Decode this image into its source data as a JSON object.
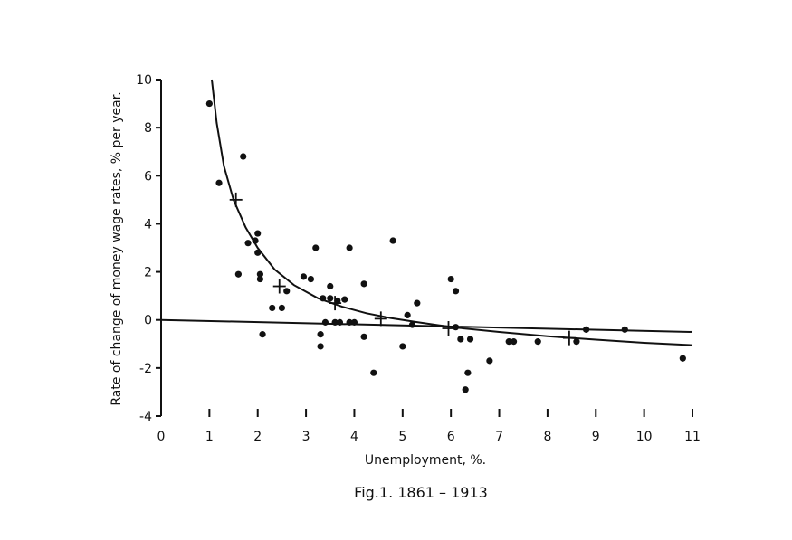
{
  "chart_data": {
    "type": "scatter",
    "title": "",
    "caption": "Fig.1. 1861 – 1913",
    "xlabel": "Unemployment,     %.",
    "ylabel": "Rate of change of money wage rates, % per year.",
    "xlim": [
      0,
      11
    ],
    "ylim": [
      -4,
      10
    ],
    "xticks": [
      0,
      1,
      2,
      3,
      4,
      5,
      6,
      7,
      8,
      9,
      10,
      11
    ],
    "yticks": [
      -4,
      -2,
      0,
      2,
      4,
      6,
      8,
      10
    ],
    "grid": false,
    "legend": "none",
    "colors": {
      "ink": "#111111",
      "background": "#ffffff"
    },
    "series": [
      {
        "kind": "scatter",
        "marker": "dot",
        "points": [
          [
            1.0,
            9.0
          ],
          [
            1.2,
            5.7
          ],
          [
            1.7,
            6.8
          ],
          [
            1.8,
            3.2
          ],
          [
            1.6,
            1.9
          ],
          [
            1.95,
            3.3
          ],
          [
            2.0,
            3.6
          ],
          [
            2.0,
            2.8
          ],
          [
            2.05,
            1.9
          ],
          [
            2.05,
            1.7
          ],
          [
            2.1,
            -0.6
          ],
          [
            2.3,
            0.5
          ],
          [
            2.5,
            0.5
          ],
          [
            2.6,
            1.2
          ],
          [
            2.95,
            1.8
          ],
          [
            3.1,
            1.7
          ],
          [
            3.2,
            3.0
          ],
          [
            3.3,
            -0.6
          ],
          [
            3.35,
            0.9
          ],
          [
            3.4,
            -0.1
          ],
          [
            3.5,
            1.4
          ],
          [
            3.5,
            0.9
          ],
          [
            3.6,
            -0.1
          ],
          [
            3.65,
            0.8
          ],
          [
            3.7,
            -0.1
          ],
          [
            3.8,
            0.85
          ],
          [
            3.9,
            -0.1
          ],
          [
            3.9,
            3.0
          ],
          [
            4.0,
            -0.1
          ],
          [
            4.2,
            1.5
          ],
          [
            4.2,
            -0.7
          ],
          [
            4.4,
            -2.2
          ],
          [
            4.8,
            3.3
          ],
          [
            5.0,
            -1.1
          ],
          [
            5.1,
            0.2
          ],
          [
            5.2,
            -0.2
          ],
          [
            5.3,
            0.7
          ],
          [
            6.0,
            1.7
          ],
          [
            6.1,
            1.2
          ],
          [
            6.1,
            -0.3
          ],
          [
            6.2,
            -0.8
          ],
          [
            6.3,
            -2.9
          ],
          [
            6.35,
            -2.2
          ],
          [
            6.4,
            -0.8
          ],
          [
            6.8,
            -1.7
          ],
          [
            7.2,
            -0.9
          ],
          [
            7.3,
            -0.9
          ],
          [
            7.8,
            -0.9
          ],
          [
            8.6,
            -0.9
          ],
          [
            8.8,
            -0.4
          ],
          [
            9.6,
            -0.4
          ],
          [
            10.8,
            -1.6
          ],
          [
            3.3,
            -1.1
          ]
        ]
      },
      {
        "kind": "scatter",
        "marker": "cross",
        "points": [
          [
            1.55,
            5.0
          ],
          [
            2.45,
            1.4
          ],
          [
            3.6,
            0.7
          ],
          [
            4.55,
            0.05
          ],
          [
            5.95,
            -0.35
          ],
          [
            8.45,
            -0.75
          ]
        ]
      },
      {
        "kind": "line",
        "shape": "curve",
        "points": [
          [
            1.05,
            10.0
          ],
          [
            1.15,
            8.2
          ],
          [
            1.3,
            6.4
          ],
          [
            1.5,
            5.0
          ],
          [
            1.75,
            3.85
          ],
          [
            2.0,
            3.0
          ],
          [
            2.35,
            2.1
          ],
          [
            2.75,
            1.45
          ],
          [
            3.25,
            0.9
          ],
          [
            3.75,
            0.55
          ],
          [
            4.25,
            0.28
          ],
          [
            4.75,
            0.08
          ],
          [
            5.25,
            -0.08
          ],
          [
            5.75,
            -0.22
          ],
          [
            6.25,
            -0.35
          ],
          [
            7.0,
            -0.5
          ],
          [
            8.0,
            -0.68
          ],
          [
            9.0,
            -0.82
          ],
          [
            10.0,
            -0.95
          ],
          [
            11.0,
            -1.05
          ]
        ]
      },
      {
        "kind": "line",
        "shape": "straight",
        "points": [
          [
            0,
            0.0
          ],
          [
            11,
            -0.5
          ]
        ]
      }
    ]
  }
}
